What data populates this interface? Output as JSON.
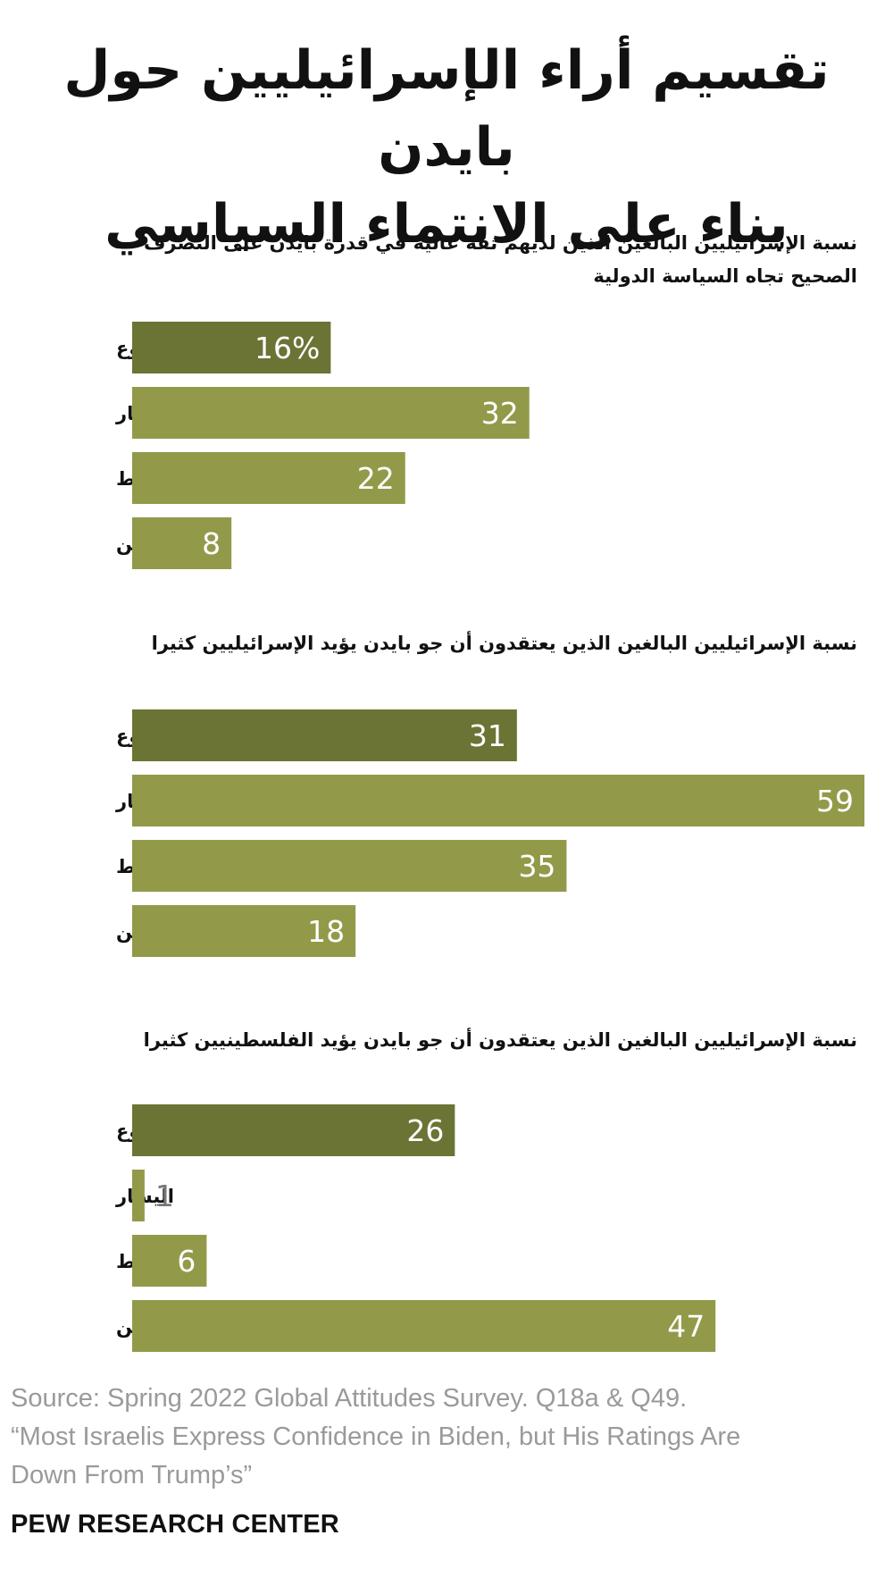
{
  "title": {
    "line1": "تقسيم أراء الإسرائيليين حول بايدن",
    "line2": "بناء على الانتماء السياسي"
  },
  "colors": {
    "total_bar": "#6b7434",
    "group_bar": "#929a49",
    "label_on_bar": "#ffffff",
    "label_outside_bar": "#777777"
  },
  "chart_data": [
    {
      "type": "bar",
      "orientation": "horizontal",
      "title": "نسبة الإسرائيليين البالغين الذين لديهم ثقة عالية في قدرة بايدن على التصرف الصحيح تجاه السياسة الدولية",
      "categories": [
        "المجموع",
        "اليسار",
        "الوسط",
        "اليمين"
      ],
      "values": [
        16,
        32,
        22,
        8
      ],
      "value_labels": [
        "16%",
        "32",
        "22",
        "8"
      ],
      "xlim": [
        0,
        59
      ]
    },
    {
      "type": "bar",
      "orientation": "horizontal",
      "title": "نسبة الإسرائيليين البالغين الذين يعتقدون أن جو بايدن يؤيد الإسرائيليين كثيرا",
      "categories": [
        "المجموع",
        "اليسار",
        "الوسط",
        "اليمين"
      ],
      "values": [
        31,
        59,
        35,
        18
      ],
      "value_labels": [
        "31",
        "59",
        "35",
        "18"
      ],
      "xlim": [
        0,
        59
      ]
    },
    {
      "type": "bar",
      "orientation": "horizontal",
      "title": "نسبة الإسرائيليين البالغين الذين يعتقدون أن جو بايدن يؤيد الفلسطينيين كثيرا",
      "categories": [
        "المجموع",
        "اليسار",
        "الوسط",
        "اليمين"
      ],
      "values": [
        26,
        1,
        6,
        47
      ],
      "value_labels": [
        "26",
        "1",
        "6",
        "47"
      ],
      "xlim": [
        0,
        59
      ]
    }
  ],
  "source": {
    "line1": "Source: Spring 2022 Global Attitudes Survey. Q18a & Q49.",
    "line2": "“Most Israelis Express Confidence in Biden, but His Ratings Are",
    "line3": "Down From Trump’s”"
  },
  "footer": "PEW RESEARCH CENTER"
}
